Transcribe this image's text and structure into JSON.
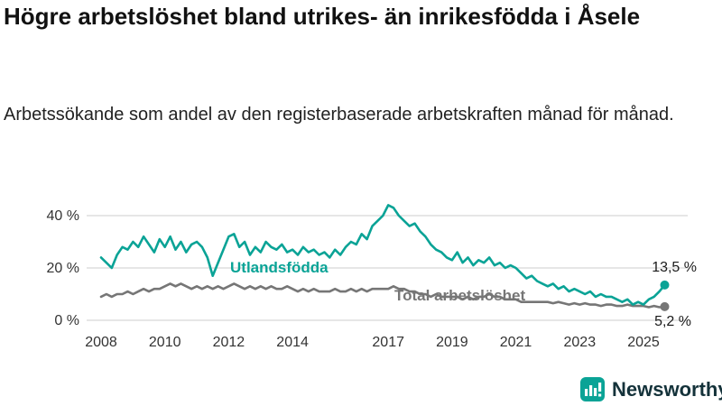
{
  "header": {
    "title": "Högre arbetslöshet bland utrikes- än inrikesfödda i Åsele",
    "subtitle": "Arbetssökande som andel av den registerbaserade arbetskraften månad för månad."
  },
  "chart_data": {
    "type": "line",
    "title": "Högre arbetslöshet bland utrikes- än inrikesfödda i Åsele",
    "subtitle": "Arbetssökande som andel av den registerbaserade arbetskraften månad för månad.",
    "x_start": 2008,
    "x_interval_years": 0.16667,
    "x_end_approx": 2025.67,
    "xticks": [
      2008,
      2010,
      2012,
      2014,
      2017,
      2019,
      2021,
      2023,
      2025
    ],
    "yticks": [
      {
        "value": 0,
        "label": "0 %"
      },
      {
        "value": 20,
        "label": "20 %"
      },
      {
        "value": 40,
        "label": "40 %"
      }
    ],
    "ylim": [
      0,
      45
    ],
    "grid": true,
    "unit": "%",
    "series": [
      {
        "name": "Total arbetslöshet",
        "color": "#767676",
        "end_label": "5,2 %",
        "last_value": 5.2,
        "values": [
          9,
          10,
          9,
          10,
          10,
          11,
          10,
          11,
          12,
          11,
          12,
          12,
          13,
          14,
          13,
          14,
          13,
          12,
          13,
          12,
          13,
          12,
          13,
          12,
          13,
          14,
          13,
          12,
          13,
          12,
          13,
          12,
          13,
          12,
          12,
          13,
          12,
          11,
          12,
          11,
          12,
          11,
          11,
          11,
          12,
          11,
          11,
          12,
          11,
          12,
          11,
          12,
          12,
          12,
          12,
          13,
          12,
          12,
          11,
          11,
          10,
          10,
          9,
          10,
          9,
          9,
          9,
          9,
          8,
          9,
          8,
          9,
          9,
          10,
          9,
          9,
          8,
          8,
          8,
          7,
          7,
          7,
          7,
          7,
          7,
          6.5,
          7,
          6.5,
          6,
          6.5,
          6,
          6.5,
          6,
          6,
          5.5,
          6,
          6,
          5.5,
          5.5,
          6,
          5.5,
          5.5,
          5.5,
          5,
          5.5,
          5,
          5.2
        ]
      },
      {
        "name": "Utlandsfödda",
        "color": "#0aa396",
        "end_label": "13,5 %",
        "last_value": 13.5,
        "values": [
          24,
          22,
          20,
          25,
          28,
          27,
          30,
          28,
          32,
          29,
          26,
          31,
          28,
          32,
          27,
          30,
          26,
          29,
          30,
          28,
          24,
          17,
          22,
          27,
          32,
          33,
          28,
          30,
          25,
          28,
          26,
          30,
          28,
          27,
          29,
          26,
          27,
          25,
          28,
          26,
          27,
          25,
          26,
          24,
          27,
          25,
          28,
          30,
          29,
          33,
          31,
          36,
          38,
          40,
          44,
          43,
          40,
          38,
          36,
          37,
          34,
          32,
          29,
          27,
          26,
          24,
          23,
          26,
          22,
          24,
          21,
          23,
          22,
          24,
          21,
          22,
          20,
          21,
          20,
          18,
          16,
          17,
          15,
          14,
          13,
          14,
          12,
          13,
          11,
          12,
          11,
          10,
          11,
          9,
          10,
          9,
          9,
          8,
          7,
          8,
          6,
          7,
          6,
          8,
          9,
          11,
          13.5
        ]
      }
    ]
  },
  "footer": {
    "brand": "Newsworthy",
    "brand_color": "#0aa396"
  }
}
